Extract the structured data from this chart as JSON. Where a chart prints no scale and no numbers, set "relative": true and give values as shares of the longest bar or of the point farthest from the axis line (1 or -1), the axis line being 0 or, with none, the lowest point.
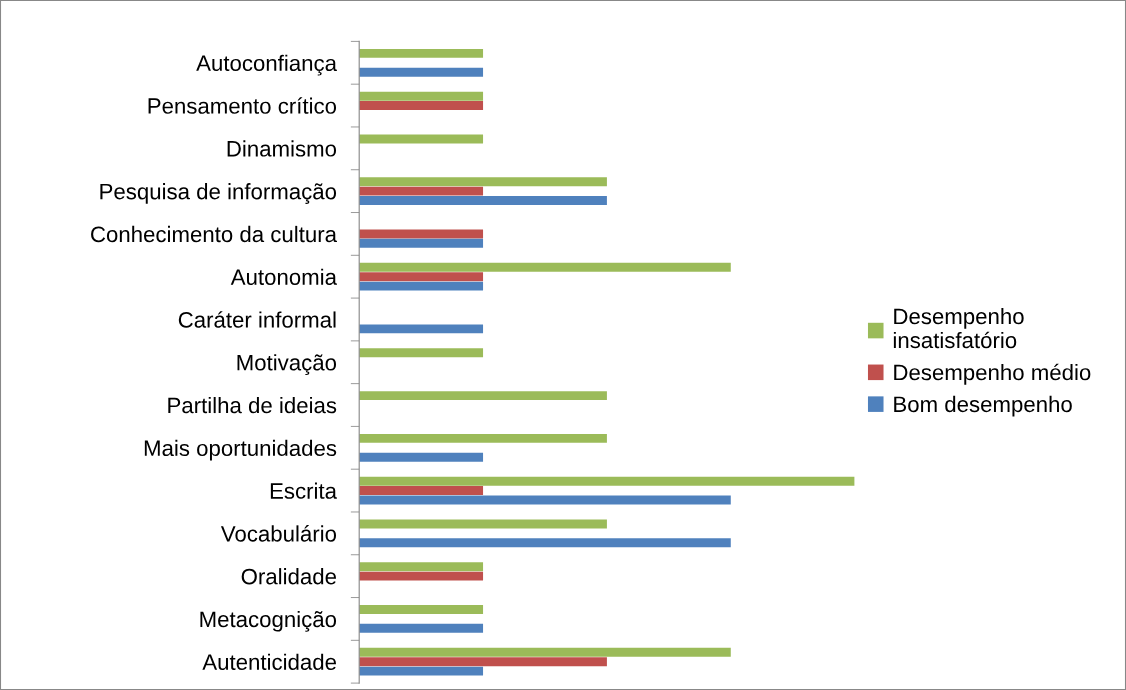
{
  "chart_data": {
    "type": "bar",
    "orientation": "horizontal",
    "relative": true,
    "legend": "right",
    "grid": false,
    "categories": [
      "Autoconfiança",
      "Pensamento crítico",
      "Dinamismo",
      "Pesquisa de informação",
      "Conhecimento da cultura",
      "Autonomia",
      "Caráter informal",
      "Motivação",
      "Partilha de ideias",
      "Mais oportunidades",
      "Escrita",
      "Vocabulário",
      "Oralidade",
      "Metacognição",
      "Autenticidade"
    ],
    "series": [
      {
        "name": "Desempenho insatisfatório",
        "color": "#9bbb59",
        "values": [
          0.25,
          0.25,
          0.25,
          0.5,
          0,
          0.75,
          0,
          0.25,
          0.5,
          0.5,
          1,
          0.5,
          0.25,
          0.25,
          0.75
        ]
      },
      {
        "name": "Desempenho médio",
        "color": "#c0504d",
        "values": [
          0,
          0.25,
          0,
          0.25,
          0.25,
          0.25,
          0,
          0,
          0,
          0,
          0.25,
          0,
          0.25,
          0,
          0.5
        ]
      },
      {
        "name": "Bom desempenho",
        "color": "#4f81bd",
        "values": [
          0.25,
          0,
          0,
          0.5,
          0.25,
          0.25,
          0.25,
          0,
          0,
          0.25,
          0.75,
          0.75,
          0,
          0.25,
          0.25
        ]
      }
    ]
  }
}
